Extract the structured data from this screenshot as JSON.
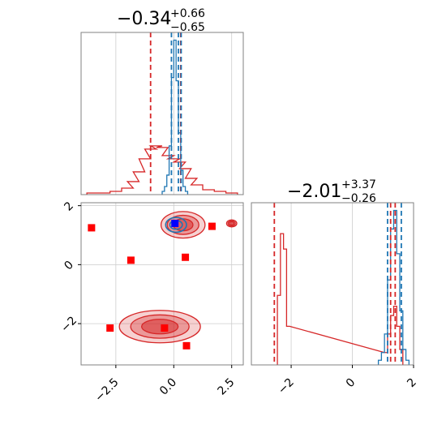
{
  "colors": {
    "red": "#d62728",
    "blue": "#1f77b4",
    "marker_red": "#ff0000",
    "marker_blue": "#0000ff",
    "grid": "#cccccc",
    "spine": "#808080"
  },
  "titles": {
    "top": {
      "main": "−0.34",
      "sup": "+0.66",
      "sub": "−0.65"
    },
    "right": {
      "main": "−2.01",
      "sup": "+3.37",
      "sub": "−0.26"
    }
  },
  "chart_data": [
    {
      "type": "histogram",
      "panel": "top-left",
      "xlim": [
        -4,
        3
      ],
      "grid": true,
      "series": [
        {
          "color": "red",
          "x": [
            -3.5,
            -3.0,
            -2.5,
            -2.0,
            -1.75,
            -1.5,
            -1.25,
            -1.0,
            -0.75,
            -0.5,
            -0.25,
            0.0,
            0.25,
            0.5,
            0.75,
            1.0,
            1.5,
            2.0,
            2.5
          ],
          "y": [
            0.01,
            0.01,
            0.02,
            0.04,
            0.08,
            0.14,
            0.22,
            0.28,
            0.3,
            0.29,
            0.24,
            0.22,
            0.2,
            0.16,
            0.1,
            0.06,
            0.03,
            0.02,
            0.01
          ]
        },
        {
          "color": "blue",
          "x": [
            -0.45,
            -0.35,
            -0.25,
            -0.15,
            -0.05,
            0.05,
            0.15,
            0.25,
            0.35,
            0.45,
            0.55
          ],
          "y": [
            0.02,
            0.05,
            0.12,
            0.3,
            0.72,
            0.95,
            0.7,
            0.38,
            0.15,
            0.05,
            0.02
          ]
        }
      ],
      "lines": [
        {
          "color": "red",
          "x": -1.0
        },
        {
          "color": "red",
          "x": 0.3
        },
        {
          "color": "blue",
          "x": -0.1
        },
        {
          "color": "blue",
          "x": 0.2
        },
        {
          "color": "blue",
          "x": 0.32
        }
      ]
    },
    {
      "type": "scatter",
      "panel": "bottom-left",
      "xlim": [
        -4,
        3
      ],
      "ylim": [
        -3.4,
        2.1
      ],
      "xticks": [
        -2.5,
        0.0,
        2.5
      ],
      "xtick_labels": [
        "−2.5",
        "0.0",
        "2.5"
      ],
      "yticks": [
        -2,
        0,
        2
      ],
      "ytick_labels": [
        "−2",
        "0",
        "2"
      ],
      "grid": true,
      "contours": [
        {
          "color": "red",
          "cx": 0.4,
          "cy": 1.35,
          "rx": 0.95,
          "ry": 0.45
        },
        {
          "color": "red",
          "cx": 2.5,
          "cy": 1.4,
          "rx": 0.22,
          "ry": 0.12
        },
        {
          "color": "red",
          "cx": -0.6,
          "cy": -2.1,
          "rx": 1.75,
          "ry": 0.55
        },
        {
          "color": "blue",
          "cx": 0.1,
          "cy": 1.35,
          "rx": 0.45,
          "ry": 0.25
        }
      ],
      "markers": [
        {
          "color": "marker_red",
          "x": -3.55,
          "y": 1.25
        },
        {
          "color": "marker_red",
          "x": -1.85,
          "y": 0.15
        },
        {
          "color": "marker_red",
          "x": 0.5,
          "y": 0.25
        },
        {
          "color": "marker_red",
          "x": 1.65,
          "y": 1.3
        },
        {
          "color": "marker_red",
          "x": -2.75,
          "y": -2.15
        },
        {
          "color": "marker_red",
          "x": -0.4,
          "y": -2.15
        },
        {
          "color": "marker_red",
          "x": 0.55,
          "y": -2.75
        },
        {
          "color": "marker_blue",
          "x": 0.05,
          "y": 1.4
        }
      ]
    },
    {
      "type": "histogram",
      "panel": "bottom-right",
      "xlim": [
        -3.3,
        2.0
      ],
      "xticks": [
        -2,
        0,
        2
      ],
      "xtick_labels": [
        "−2",
        "0",
        "2"
      ],
      "grid": true,
      "series": [
        {
          "color": "red",
          "x": [
            -2.4,
            -2.3,
            -2.2,
            -2.1,
            1.1,
            1.2,
            1.3,
            1.4,
            1.5,
            1.6
          ],
          "y": [
            0.45,
            0.85,
            0.75,
            0.25,
            0.08,
            0.2,
            0.32,
            0.38,
            0.25,
            0.1
          ]
        },
        {
          "color": "blue",
          "x": [
            0.9,
            1.0,
            1.1,
            1.2,
            1.3,
            1.4,
            1.5,
            1.6,
            1.7,
            1.8
          ],
          "y": [
            0.03,
            0.08,
            0.2,
            0.55,
            0.88,
            1.0,
            0.72,
            0.35,
            0.1,
            0.03
          ]
        }
      ],
      "lines": [
        {
          "color": "red",
          "x": -2.55
        },
        {
          "color": "red",
          "x": 1.25
        },
        {
          "color": "red",
          "x": 1.4
        },
        {
          "color": "blue",
          "x": 1.15
        },
        {
          "color": "blue",
          "x": 1.6
        }
      ]
    }
  ]
}
